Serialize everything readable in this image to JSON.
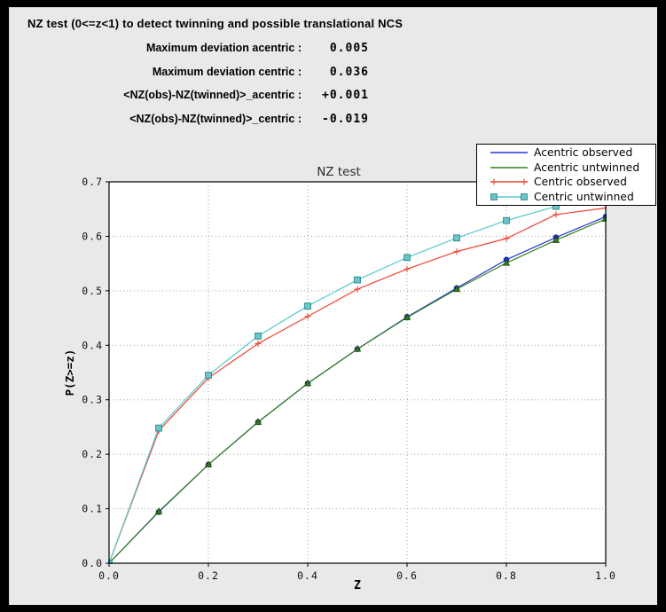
{
  "header": {
    "title": "NZ test (0<=z<1) to detect twinning and possible translational NCS"
  },
  "stats": {
    "rows": [
      {
        "label": "Maximum deviation acentric :",
        "value": "0.005"
      },
      {
        "label": "Maximum deviation centric :",
        "value": "0.036"
      },
      {
        "label": "<NZ(obs)-NZ(twinned)>_acentric :",
        "value": "+0.001"
      },
      {
        "label": "<NZ(obs)-NZ(twinned)>_centric :",
        "value": "-0.019"
      }
    ]
  },
  "chart_data": {
    "type": "line",
    "title": "NZ test",
    "xlabel": "Z",
    "ylabel": "P(Z>=z)",
    "xlim": [
      0.0,
      1.0
    ],
    "ylim": [
      0.0,
      0.7
    ],
    "xtick_values": [
      0.0,
      0.2,
      0.4,
      0.6,
      0.8,
      1.0
    ],
    "xtick_labels": [
      "0.0",
      "0.2",
      "0.4",
      "0.6",
      "0.8",
      "1.0"
    ],
    "ytick_values": [
      0.0,
      0.1,
      0.2,
      0.3,
      0.4,
      0.5,
      0.6,
      0.7
    ],
    "ytick_labels": [
      "0.0",
      "0.1",
      "0.2",
      "0.3",
      "0.4",
      "0.5",
      "0.6",
      "0.7"
    ],
    "grid": "dotted, at labeled ticks",
    "legend_position": "upper right, overlapping plot top-right corner",
    "x": [
      0.0,
      0.1,
      0.2,
      0.3,
      0.4,
      0.5,
      0.6,
      0.7,
      0.8,
      0.9,
      1.0
    ],
    "series": [
      {
        "name": "Acentric observed",
        "color": "#2636d9",
        "marker": "circle",
        "marker_fill": "#2431c8",
        "marker_edge": "#141f8a",
        "values": [
          0.0,
          0.094,
          0.181,
          0.259,
          0.33,
          0.393,
          0.452,
          0.505,
          0.557,
          0.598,
          0.636
        ]
      },
      {
        "name": "Acentric untwinned",
        "color": "#35801f",
        "marker": "triangle",
        "marker_fill": "#2f7a1a",
        "marker_edge": "#1c4d0e",
        "values": [
          0.0,
          0.095,
          0.181,
          0.259,
          0.33,
          0.393,
          0.451,
          0.503,
          0.551,
          0.593,
          0.632
        ]
      },
      {
        "name": "Centric observed",
        "color": "#ee4331",
        "marker": "plus",
        "marker_fill": "#ee4331",
        "marker_edge": "#ee4331",
        "values": [
          0.0,
          0.243,
          0.34,
          0.403,
          0.453,
          0.503,
          0.54,
          0.572,
          0.596,
          0.64,
          0.652
        ]
      },
      {
        "name": "Centric untwinned",
        "color": "#56c8cb",
        "marker": "square",
        "marker_fill": "#6cc5c8",
        "marker_edge": "#2f8f93",
        "values": [
          0.0,
          0.248,
          0.345,
          0.417,
          0.472,
          0.52,
          0.561,
          0.597,
          0.629,
          0.655,
          0.683
        ]
      }
    ],
    "colors": {
      "plot_background": "#ffffff",
      "figure_background": "#e9e9e9",
      "grid": "#a0a0a0",
      "spine": "#000000",
      "title_text": "#2a2a2a"
    }
  }
}
